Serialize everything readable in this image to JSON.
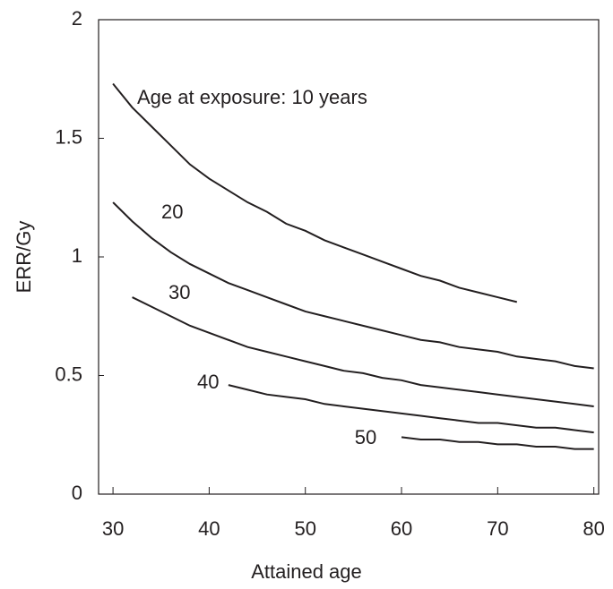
{
  "chart_data": {
    "type": "line",
    "x_label": "Attained age",
    "y_label": "ERR/Gy",
    "x": [
      30,
      32,
      34,
      36,
      38,
      40,
      42,
      44,
      46,
      48,
      50,
      52,
      54,
      56,
      58,
      60,
      62,
      64,
      66,
      68,
      70,
      72,
      74,
      76,
      78,
      80
    ],
    "series": [
      {
        "name": "Age at exposure: 10 years",
        "color": "#231f20",
        "values": [
          1.73,
          1.63,
          1.55,
          1.47,
          1.39,
          1.33,
          1.28,
          1.23,
          1.19,
          1.14,
          1.11,
          1.07,
          1.04,
          1.01,
          0.98,
          0.95,
          0.92,
          0.9,
          0.87,
          0.85,
          0.83,
          0.81,
          null,
          null,
          null,
          null
        ]
      },
      {
        "name": "20",
        "color": "#231f20",
        "values": [
          1.23,
          1.15,
          1.08,
          1.02,
          0.97,
          0.93,
          0.89,
          0.86,
          0.83,
          0.8,
          0.77,
          0.75,
          0.73,
          0.71,
          0.69,
          0.67,
          0.65,
          0.64,
          0.62,
          0.61,
          0.6,
          0.58,
          0.57,
          0.56,
          0.54,
          0.53
        ]
      },
      {
        "name": "30",
        "color": "#231f20",
        "values": [
          null,
          0.83,
          0.79,
          0.75,
          0.71,
          0.68,
          0.65,
          0.62,
          0.6,
          0.58,
          0.56,
          0.54,
          0.52,
          0.51,
          0.49,
          0.48,
          0.46,
          0.45,
          0.44,
          0.43,
          0.42,
          0.41,
          0.4,
          0.39,
          0.38,
          0.37
        ]
      },
      {
        "name": "40",
        "color": "#231f20",
        "values": [
          null,
          null,
          null,
          null,
          null,
          null,
          0.46,
          0.44,
          0.42,
          0.41,
          0.4,
          0.38,
          0.37,
          0.36,
          0.35,
          0.34,
          0.33,
          0.32,
          0.31,
          0.3,
          0.3,
          0.29,
          0.28,
          0.28,
          0.27,
          0.26
        ]
      },
      {
        "name": "50",
        "color": "#231f20",
        "values": [
          null,
          null,
          null,
          null,
          null,
          null,
          null,
          null,
          null,
          null,
          null,
          null,
          null,
          null,
          null,
          0.24,
          0.23,
          0.23,
          0.22,
          0.22,
          0.21,
          0.21,
          0.2,
          0.2,
          0.19,
          0.19
        ]
      }
    ],
    "xlim": [
      28.5,
      80.5
    ],
    "xticks": [
      30,
      40,
      50,
      60,
      70,
      80
    ],
    "ylim": [
      0,
      2
    ],
    "yticks": [
      0,
      0.5,
      1,
      1.5,
      2
    ]
  }
}
